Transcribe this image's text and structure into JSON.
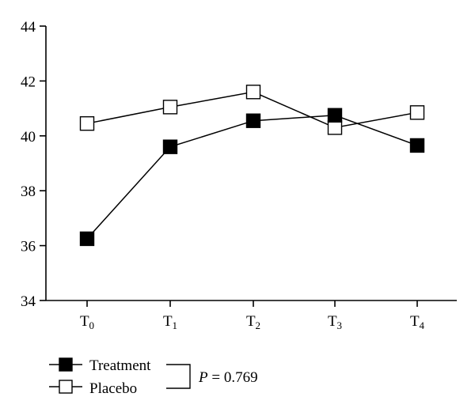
{
  "chart_data": {
    "type": "line",
    "title": "",
    "xlabel": "",
    "ylabel": "",
    "categories": [
      {
        "main": "T",
        "sub": "0"
      },
      {
        "main": "T",
        "sub": "1"
      },
      {
        "main": "T",
        "sub": "2"
      },
      {
        "main": "T",
        "sub": "3"
      },
      {
        "main": "T",
        "sub": "4"
      }
    ],
    "ylim": [
      34,
      44
    ],
    "yticks": [
      34,
      36,
      38,
      40,
      42,
      44
    ],
    "grid": false,
    "legend_position": "bottom-left",
    "series": [
      {
        "name": "Treatment",
        "marker": "filled-square",
        "values": [
          36.25,
          39.6,
          40.55,
          40.75,
          39.65
        ]
      },
      {
        "name": "Placebo",
        "marker": "open-square",
        "values": [
          40.45,
          41.05,
          41.6,
          40.3,
          40.85
        ]
      }
    ],
    "annotation": {
      "p_label": "P",
      "p_rest": " = 0.769"
    }
  }
}
